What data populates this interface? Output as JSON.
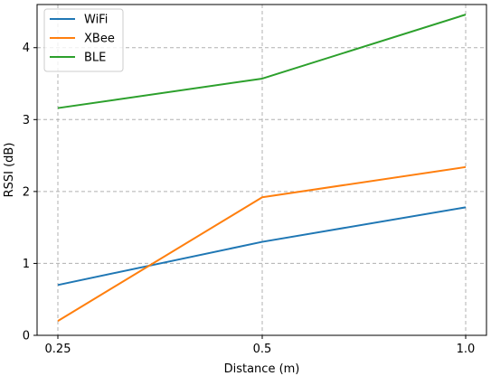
{
  "chart_data": {
    "type": "line",
    "title": "",
    "xlabel": "Distance (m)",
    "ylabel": "RSSI (dB)",
    "categories": [
      "0.25",
      "0.5",
      "1.0"
    ],
    "x_ticks": [
      "0.25",
      "0.5",
      "1.0"
    ],
    "y_ticks": [
      "0",
      "1",
      "2",
      "3",
      "4"
    ],
    "ylim": [
      0,
      4.6
    ],
    "grid": true,
    "legend_position": "top-left",
    "series": [
      {
        "name": "WiFi",
        "color": "#1f77b4",
        "values": [
          0.7,
          1.3,
          1.78
        ]
      },
      {
        "name": "XBee",
        "color": "#ff7f0e",
        "values": [
          0.2,
          1.92,
          2.34
        ]
      },
      {
        "name": "BLE",
        "color": "#2ca02c",
        "values": [
          3.16,
          3.57,
          4.46
        ]
      }
    ]
  }
}
